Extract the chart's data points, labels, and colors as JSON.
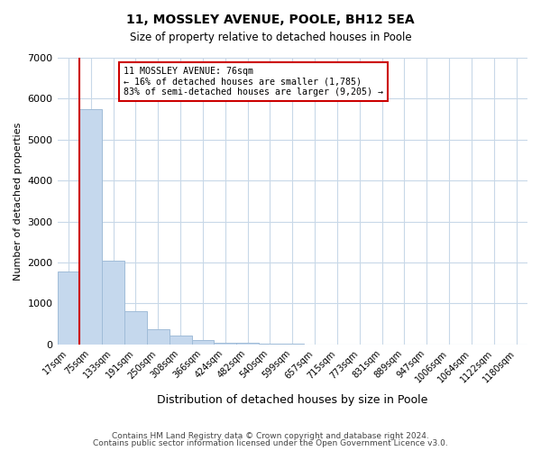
{
  "title": "11, MOSSLEY AVENUE, POOLE, BH12 5EA",
  "subtitle": "Size of property relative to detached houses in Poole",
  "xlabel": "Distribution of detached houses by size in Poole",
  "ylabel": "Number of detached properties",
  "bin_labels": [
    "17sqm",
    "75sqm",
    "133sqm",
    "191sqm",
    "250sqm",
    "308sqm",
    "366sqm",
    "424sqm",
    "482sqm",
    "540sqm",
    "599sqm",
    "657sqm",
    "715sqm",
    "773sqm",
    "831sqm",
    "889sqm",
    "947sqm",
    "1006sqm",
    "1064sqm",
    "1122sqm",
    "1180sqm"
  ],
  "bar_values": [
    1780,
    5750,
    2050,
    800,
    365,
    225,
    110,
    50,
    30,
    20,
    10,
    0,
    0,
    0,
    0,
    0,
    0,
    0,
    0,
    0,
    0
  ],
  "bar_color": "#c5d8ed",
  "bar_edge_color": "#a0bcd8",
  "ylim": [
    0,
    7000
  ],
  "yticks": [
    0,
    1000,
    2000,
    3000,
    4000,
    5000,
    6000,
    7000
  ],
  "property_line_color": "#cc0000",
  "annotation_text": "11 MOSSLEY AVENUE: 76sqm\n← 16% of detached houses are smaller (1,785)\n83% of semi-detached houses are larger (9,205) →",
  "annotation_box_color": "#ffffff",
  "annotation_box_edge_color": "#cc0000",
  "footer_line1": "Contains HM Land Registry data © Crown copyright and database right 2024.",
  "footer_line2": "Contains public sector information licensed under the Open Government Licence v3.0.",
  "bg_color": "#ffffff",
  "grid_color": "#c8d8e8",
  "figsize": [
    6.0,
    5.0
  ],
  "dpi": 100
}
